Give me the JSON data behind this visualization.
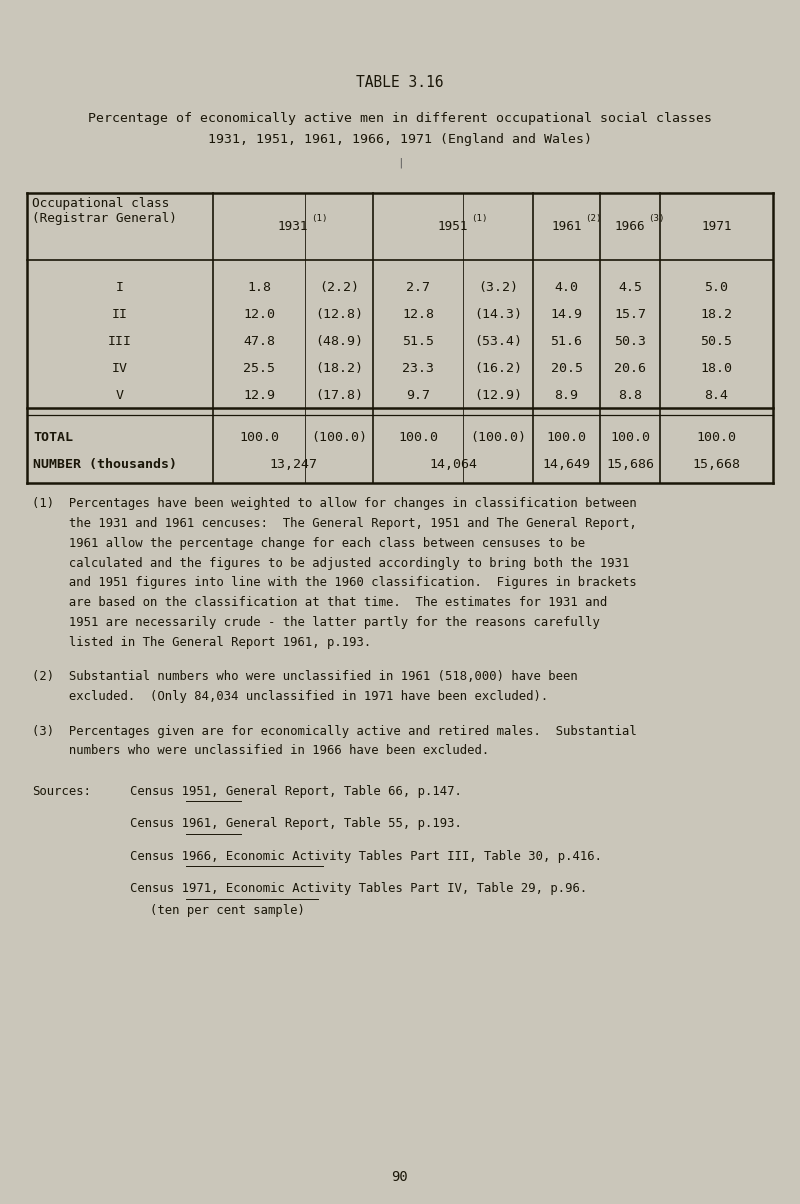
{
  "table_title": "TABLE 3.16",
  "subtitle_line1": "Percentage of economically active men in different occupational social classes",
  "subtitle_line2": "1931, 1951, 1961, 1966, 1971 (England and Wales)",
  "bg_color": "#cac6ba",
  "rows": [
    {
      "class": "I",
      "v1931": "1.8",
      "b1931": "(2.2)",
      "v1951": "2.7",
      "b1951": "(3.2)",
      "v1961": "4.0",
      "v1966": "4.5",
      "v1971": "5.0"
    },
    {
      "class": "II",
      "v1931": "12.0",
      "b1931": "(12.8)",
      "v1951": "12.8",
      "b1951": "(14.3)",
      "v1961": "14.9",
      "v1966": "15.7",
      "v1971": "18.2"
    },
    {
      "class": "III",
      "v1931": "47.8",
      "b1931": "(48.9)",
      "v1951": "51.5",
      "b1951": "(53.4)",
      "v1961": "51.6",
      "v1966": "50.3",
      "v1971": "50.5"
    },
    {
      "class": "IV",
      "v1931": "25.5",
      "b1931": "(18.2)",
      "v1951": "23.3",
      "b1951": "(16.2)",
      "v1961": "20.5",
      "v1966": "20.6",
      "v1971": "18.0"
    },
    {
      "class": "V",
      "v1931": "12.9",
      "b1931": "(17.8)",
      "v1951": "9.7",
      "b1951": "(12.9)",
      "v1961": "8.9",
      "v1966": "8.8",
      "v1971": "8.4"
    }
  ],
  "total_row": {
    "total1931": "100.0",
    "btotal1931": "(100.0)",
    "total1951": "100.0",
    "btotal1951": "(100.0)",
    "total1961": "100.0",
    "total1966": "100.0",
    "total1971": "100.0"
  },
  "number_row": {
    "n1931": "13,247",
    "n1951": "14,064",
    "n1961": "14,649",
    "n1966": "15,686",
    "n1971": "15,668"
  },
  "footnote1_lines": [
    "(1)  Percentages have been weighted to allow for changes in classification between",
    "     the 1931 and 1961 cencuses:  The General Report, 1951 and The General Report,",
    "     1961 allow the percentage change for each class between censuses to be",
    "     calculated and the figures to be adjusted accordingly to bring both the 1931",
    "     and 1951 figures into line with the 1960 classification.  Figures in brackets",
    "     are based on the classification at that time.  The estimates for 1931 and",
    "     1951 are necessarily crude - the latter partly for the reasons carefully",
    "     listed in The General Report 1961, p.193."
  ],
  "footnote2_lines": [
    "(2)  Substantial numbers who were unclassified in 1961 (518,000) have been",
    "     excluded.  (Only 84,034 unclassified in 1971 have been excluded)."
  ],
  "footnote3_lines": [
    "(3)  Percentages given are for economically active and retired males.  Substantial",
    "     numbers who were unclassified in 1966 have been excluded."
  ],
  "sources_header": "Sources:",
  "source_lines": [
    [
      "Census 1951, ",
      "General Report",
      ", Table 66, p.147."
    ],
    [
      "Census 1961, ",
      "General Report",
      ", Table 55, p.193."
    ],
    [
      "Census 1966, ",
      "Economic Activity Tables Part III",
      ", Table 30, p.416."
    ],
    [
      "Census 1971, ",
      "Economic Activity Tables Part IV",
      ", Table 29, p.96."
    ],
    [
      "(ten per cent sample)"
    ]
  ],
  "page_number": "90",
  "text_color": "#1a1608",
  "line_color": "#1a1608"
}
